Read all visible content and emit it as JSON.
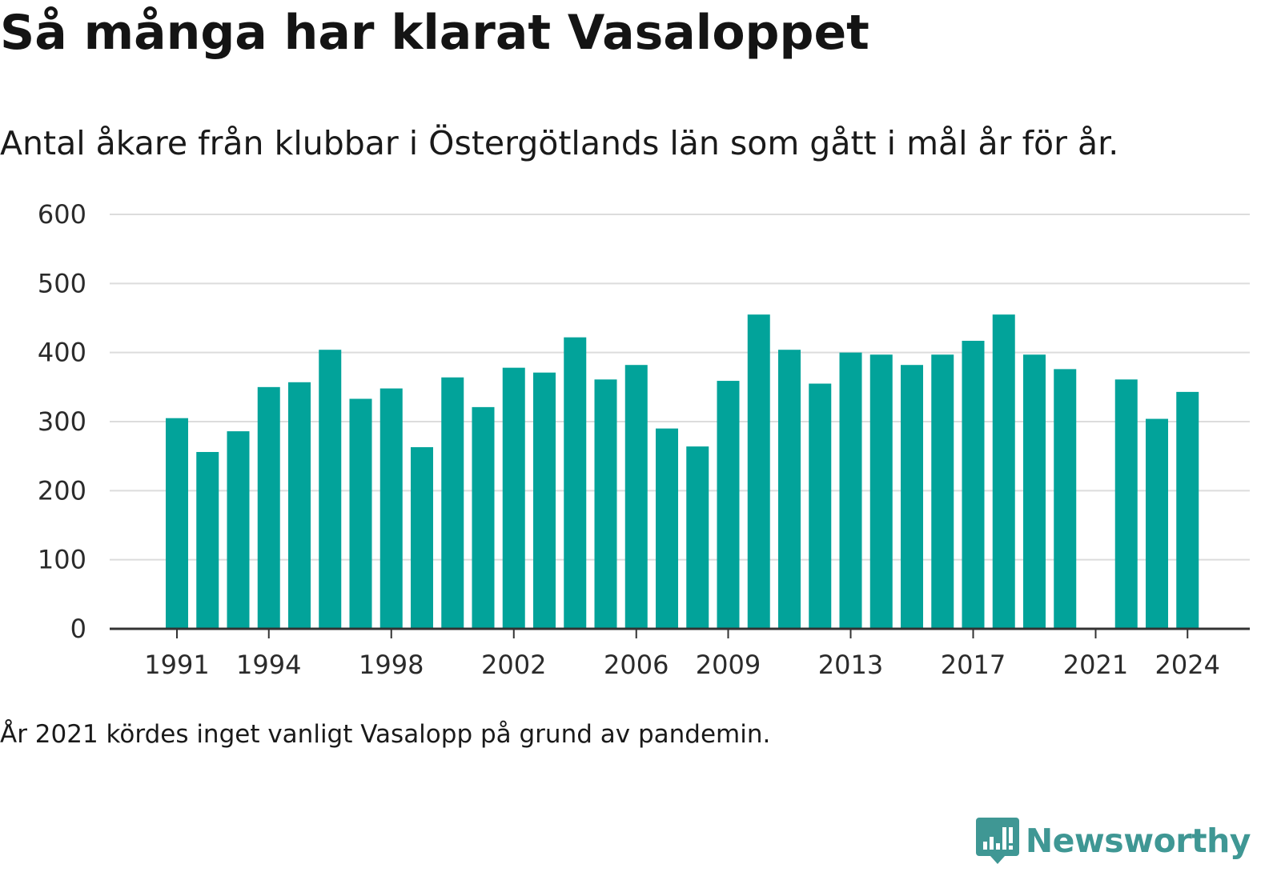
{
  "header": {
    "title": "Så många har klarat Vasaloppet",
    "subtitle": "Antal åkare från klubbar i Östergötlands län som gått i mål år för år."
  },
  "footer": {
    "note": "År 2021 kördes inget vanligt Vasalopp på grund av pandemin.",
    "brand": "Newsworthy"
  },
  "chart_data": {
    "type": "bar",
    "title": "Så många har klarat Vasaloppet",
    "subtitle": "Antal åkare från klubbar i Östergötlands län som gått i mål år för år.",
    "xlabel": "",
    "ylabel": "",
    "ylim": [
      0,
      600
    ],
    "yticks": [
      0,
      100,
      200,
      300,
      400,
      500,
      600
    ],
    "xtick_labels": [
      1991,
      1994,
      1998,
      2002,
      2006,
      2009,
      2013,
      2017,
      2021,
      2024
    ],
    "grid": true,
    "legend": "none",
    "bar_color": "#02a39a",
    "categories": [
      1991,
      1992,
      1993,
      1994,
      1995,
      1996,
      1997,
      1998,
      1999,
      2000,
      2001,
      2002,
      2003,
      2004,
      2005,
      2006,
      2007,
      2008,
      2009,
      2010,
      2011,
      2012,
      2013,
      2014,
      2015,
      2016,
      2017,
      2018,
      2019,
      2020,
      2021,
      2022,
      2023,
      2024
    ],
    "values": [
      305,
      256,
      286,
      350,
      357,
      404,
      333,
      348,
      263,
      364,
      321,
      378,
      371,
      422,
      361,
      382,
      290,
      264,
      359,
      455,
      404,
      355,
      400,
      397,
      382,
      397,
      417,
      455,
      397,
      376,
      null,
      361,
      304,
      343
    ]
  }
}
